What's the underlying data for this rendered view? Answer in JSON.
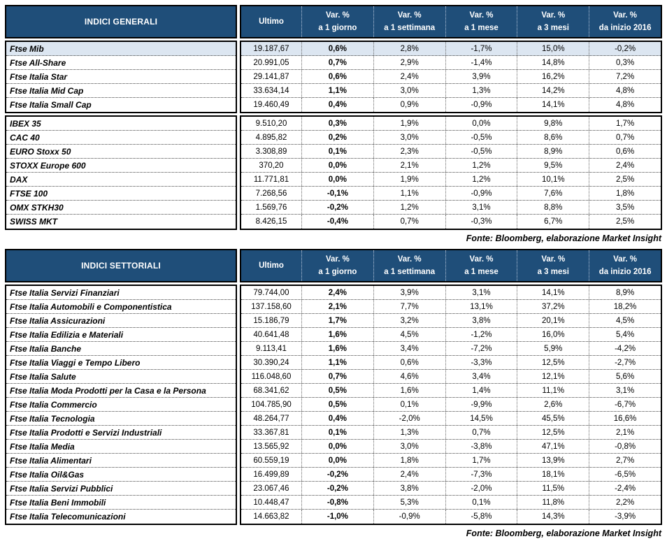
{
  "colors": {
    "header_bg": "#1f4e79",
    "header_text": "#ffffff",
    "highlight_row_bg": "#dce6f1",
    "border": "#000000"
  },
  "chart_data": [
    {
      "type": "table",
      "title": "INDICI GENERALI",
      "fonte": "Fonte: Bloomberg, elaborazione Market Insight",
      "columns": [
        {
          "line1": "Ultimo",
          "line2": ""
        },
        {
          "line1": "Var. %",
          "line2": "a 1 giorno"
        },
        {
          "line1": "Var. %",
          "line2": "a 1 settimana"
        },
        {
          "line1": "Var. %",
          "line2": "a 1 mese"
        },
        {
          "line1": "Var. %",
          "line2": "a 3 mesi"
        },
        {
          "line1": "Var. %",
          "line2": "da inizio 2016"
        }
      ],
      "groups": [
        {
          "rows": [
            {
              "label": "Ftse Mib",
              "highlight": true,
              "values": [
                "19.187,67",
                "0,6%",
                "2,8%",
                "-1,7%",
                "15,0%",
                "-0,2%"
              ]
            },
            {
              "label": "Ftse All-Share",
              "values": [
                "20.991,05",
                "0,7%",
                "2,9%",
                "-1,4%",
                "14,8%",
                "0,3%"
              ]
            },
            {
              "label": "Ftse Italia Star",
              "values": [
                "29.141,87",
                "0,6%",
                "2,4%",
                "3,9%",
                "16,2%",
                "7,2%"
              ]
            },
            {
              "label": "Ftse Italia Mid Cap",
              "values": [
                "33.634,14",
                "1,1%",
                "3,0%",
                "1,3%",
                "14,2%",
                "4,8%"
              ]
            },
            {
              "label": "Ftse Italia Small Cap",
              "values": [
                "19.460,49",
                "0,4%",
                "0,9%",
                "-0,9%",
                "14,1%",
                "4,8%"
              ]
            }
          ]
        },
        {
          "rows": [
            {
              "label": "IBEX 35",
              "values": [
                "9.510,20",
                "0,3%",
                "1,9%",
                "0,0%",
                "9,8%",
                "1,7%"
              ]
            },
            {
              "label": "CAC 40",
              "values": [
                "4.895,82",
                "0,2%",
                "3,0%",
                "-0,5%",
                "8,6%",
                "0,7%"
              ]
            },
            {
              "label": "EURO Stoxx 50",
              "values": [
                "3.308,89",
                "0,1%",
                "2,3%",
                "-0,5%",
                "8,9%",
                "0,6%"
              ]
            },
            {
              "label": "STOXX Europe 600",
              "values": [
                "370,20",
                "0,0%",
                "2,1%",
                "1,2%",
                "9,5%",
                "2,4%"
              ]
            },
            {
              "label": "DAX",
              "values": [
                "11.771,81",
                "0,0%",
                "1,9%",
                "1,2%",
                "10,1%",
                "2,5%"
              ]
            },
            {
              "label": "FTSE 100",
              "values": [
                "7.268,56",
                "-0,1%",
                "1,1%",
                "-0,9%",
                "7,6%",
                "1,8%"
              ]
            },
            {
              "label": "OMX STKH30",
              "values": [
                "1.569,76",
                "-0,2%",
                "1,2%",
                "3,1%",
                "8,8%",
                "3,5%"
              ]
            },
            {
              "label": "SWISS MKT",
              "values": [
                "8.426,15",
                "-0,4%",
                "0,7%",
                "-0,3%",
                "6,7%",
                "2,5%"
              ]
            }
          ]
        }
      ]
    },
    {
      "type": "table",
      "title": "INDICI SETTORIALI",
      "fonte": "Fonte: Bloomberg, elaborazione Market Insight",
      "columns": [
        {
          "line1": "Ultimo",
          "line2": ""
        },
        {
          "line1": "Var. %",
          "line2": "a 1 giorno"
        },
        {
          "line1": "Var. %",
          "line2": "a 1 settimana"
        },
        {
          "line1": "Var. %",
          "line2": "a 1 mese"
        },
        {
          "line1": "Var. %",
          "line2": "a 3 mesi"
        },
        {
          "line1": "Var. %",
          "line2": "da inizio 2016"
        }
      ],
      "groups": [
        {
          "rows": [
            {
              "label": "Ftse Italia Servizi Finanziari",
              "values": [
                "79.744,00",
                "2,4%",
                "3,9%",
                "3,1%",
                "14,1%",
                "8,9%"
              ]
            },
            {
              "label": "Ftse Italia Automobili e Componentistica",
              "values": [
                "137.158,60",
                "2,1%",
                "7,7%",
                "13,1%",
                "37,2%",
                "18,2%"
              ]
            },
            {
              "label": "Ftse Italia Assicurazioni",
              "values": [
                "15.186,79",
                "1,7%",
                "3,2%",
                "3,8%",
                "20,1%",
                "4,5%"
              ]
            },
            {
              "label": "Ftse Italia Edilizia e Materiali",
              "values": [
                "40.641,48",
                "1,6%",
                "4,5%",
                "-1,2%",
                "16,0%",
                "5,4%"
              ]
            },
            {
              "label": "Ftse Italia Banche",
              "values": [
                "9.113,41",
                "1,6%",
                "3,4%",
                "-7,2%",
                "5,9%",
                "-4,2%"
              ]
            },
            {
              "label": "Ftse Italia Viaggi e Tempo Libero",
              "values": [
                "30.390,24",
                "1,1%",
                "0,6%",
                "-3,3%",
                "12,5%",
                "-2,7%"
              ]
            },
            {
              "label": "Ftse Italia Salute",
              "values": [
                "116.048,60",
                "0,7%",
                "4,6%",
                "3,4%",
                "12,1%",
                "5,6%"
              ]
            },
            {
              "label": "Ftse Italia Moda Prodotti per la Casa e la Persona",
              "values": [
                "68.341,62",
                "0,5%",
                "1,6%",
                "1,4%",
                "11,1%",
                "3,1%"
              ]
            },
            {
              "label": "Ftse Italia Commercio",
              "values": [
                "104.785,90",
                "0,5%",
                "0,1%",
                "-9,9%",
                "2,6%",
                "-6,7%"
              ]
            },
            {
              "label": "Ftse Italia Tecnologia",
              "values": [
                "48.264,77",
                "0,4%",
                "-2,0%",
                "14,5%",
                "45,5%",
                "16,6%"
              ]
            },
            {
              "label": "Ftse Italia Prodotti e Servizi Industriali",
              "values": [
                "33.367,81",
                "0,1%",
                "1,3%",
                "0,7%",
                "12,5%",
                "2,1%"
              ]
            },
            {
              "label": "Ftse Italia Media",
              "values": [
                "13.565,92",
                "0,0%",
                "3,0%",
                "-3,8%",
                "47,1%",
                "-0,8%"
              ]
            },
            {
              "label": "Ftse Italia Alimentari",
              "values": [
                "60.559,19",
                "0,0%",
                "1,8%",
                "1,7%",
                "13,9%",
                "2,7%"
              ]
            },
            {
              "label": "Ftse Italia Oil&Gas",
              "values": [
                "16.499,89",
                "-0,2%",
                "2,4%",
                "-7,3%",
                "18,1%",
                "-6,5%"
              ]
            },
            {
              "label": "Ftse Italia Servizi Pubblici",
              "values": [
                "23.067,46",
                "-0,2%",
                "3,8%",
                "-2,0%",
                "11,5%",
                "-2,4%"
              ]
            },
            {
              "label": "Ftse Italia Beni Immobili",
              "values": [
                "10.448,47",
                "-0,8%",
                "5,3%",
                "0,1%",
                "11,8%",
                "2,2%"
              ]
            },
            {
              "label": "Ftse Italia Telecomunicazioni",
              "values": [
                "14.663,82",
                "-1,0%",
                "-0,9%",
                "-5,8%",
                "14,3%",
                "-3,9%"
              ]
            }
          ]
        }
      ]
    }
  ]
}
